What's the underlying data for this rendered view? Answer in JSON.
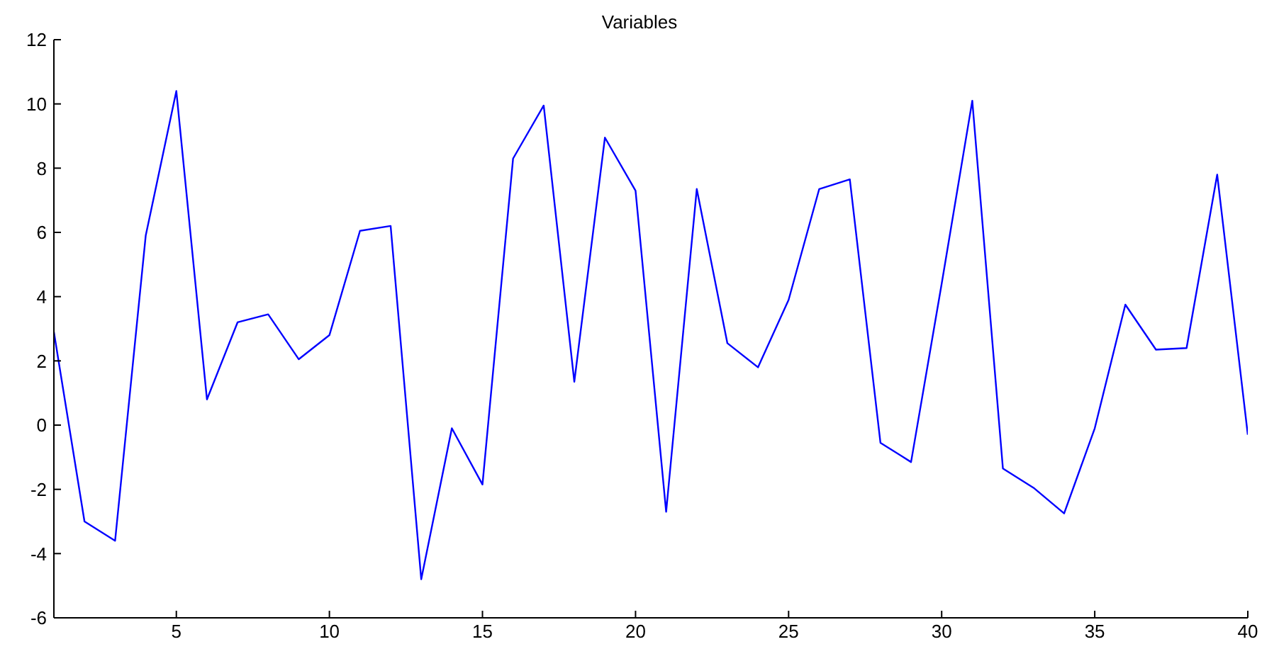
{
  "chart_data": {
    "type": "line",
    "title": "Variables",
    "x": [
      1,
      2,
      3,
      4,
      5,
      6,
      7,
      8,
      9,
      10,
      11,
      12,
      13,
      14,
      15,
      16,
      17,
      18,
      19,
      20,
      21,
      22,
      23,
      24,
      25,
      26,
      27,
      28,
      29,
      30,
      31,
      32,
      33,
      34,
      35,
      36,
      37,
      38,
      39,
      40
    ],
    "series": [
      {
        "color": "#0000ff",
        "values": [
          2.9,
          -3.0,
          -3.6,
          5.9,
          10.4,
          0.8,
          3.2,
          3.45,
          2.05,
          2.8,
          6.05,
          6.2,
          -4.8,
          -0.1,
          -1.85,
          8.3,
          9.95,
          1.35,
          8.95,
          7.3,
          -2.7,
          7.35,
          2.55,
          1.8,
          3.9,
          7.35,
          7.65,
          -0.55,
          -1.15,
          4.4,
          10.1,
          -1.35,
          -1.95,
          -2.75,
          -0.1,
          3.75,
          2.35,
          2.4,
          7.8,
          -0.3
        ]
      }
    ],
    "xlim": [
      1,
      40
    ],
    "xticks": [
      5,
      10,
      15,
      20,
      25,
      30,
      35,
      40
    ],
    "ylim": [
      -6,
      12
    ],
    "yticks": [
      -6,
      -4,
      -2,
      0,
      2,
      4,
      6,
      8,
      10,
      12
    ],
    "grid": false,
    "legend": false,
    "marker": "none",
    "line_style": "solid"
  }
}
